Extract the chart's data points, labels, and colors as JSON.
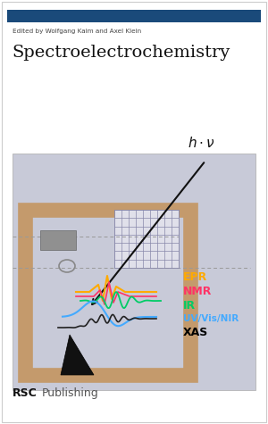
{
  "bg_color": "#ffffff",
  "top_bar_color": "#1a4a7a",
  "editor_text": "Edited by Wolfgang Kaim and Axel Klein",
  "title_text": "Spectroelectrochemistry",
  "bottom_text_rsc": "RSC",
  "bottom_text_pub": "Publishing",
  "cover_bg": "#c8cad8",
  "frame_color": "#c49a6c",
  "grid_bg": "#e0e0ea",
  "grid_color": "#8888aa",
  "epr_color": "#ffaa00",
  "nmr_color": "#ff3366",
  "ir_color": "#00cc66",
  "uv_color": "#44aaff",
  "xas_color": "#000000",
  "border_color": "#cccccc"
}
